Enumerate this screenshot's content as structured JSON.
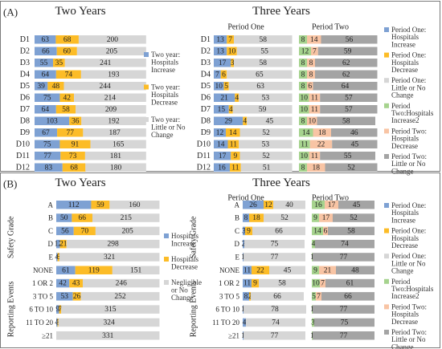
{
  "panelA": {
    "label": "(A)",
    "left": {
      "title": "Two Years",
      "max": 310,
      "rows": [
        "D1",
        "D2",
        "D3",
        "D4",
        "D5",
        "D6",
        "D7",
        "D8",
        "D9",
        "D10",
        "D11",
        "D12"
      ],
      "series": [
        {
          "name": "Two year: Hospitals Increase",
          "color": "#7ea1d3",
          "values": [
            63,
            66,
            55,
            64,
            39,
            75,
            64,
            103,
            67,
            75,
            77,
            83
          ]
        },
        {
          "name": "Two year: Hospitals Decrease",
          "color": "#fcbc27",
          "values": [
            68,
            60,
            35,
            74,
            48,
            42,
            58,
            36,
            77,
            91,
            73,
            68
          ]
        },
        {
          "name": "Two year: Little or No Change",
          "color": "#d6d6d6",
          "values": [
            200,
            205,
            241,
            193,
            244,
            214,
            209,
            192,
            187,
            165,
            181,
            180
          ]
        }
      ],
      "legend": [
        "Two year: Hospitals Increase",
        "Two year: Hospitals Decrease",
        "Two year: Little or No Change"
      ]
    },
    "right": {
      "title": "Three Years",
      "period_one": "Period One",
      "period_two": "Period Two",
      "max": 80,
      "rows": [
        "D1",
        "D2",
        "D3",
        "D4",
        "D5",
        "D6",
        "D7",
        "D8",
        "D9",
        "D10",
        "D11",
        "D12"
      ],
      "p1": [
        {
          "name": "Period One: Hospitals Increase",
          "color": "#7ea1d3",
          "values": [
            13,
            13,
            17,
            7,
            10,
            21,
            15,
            29,
            12,
            14,
            17,
            16
          ]
        },
        {
          "name": "Period One: Hospitals Decrease",
          "color": "#fcbc27",
          "values": [
            7,
            10,
            3,
            6,
            5,
            4,
            4,
            4,
            14,
            11,
            9,
            11
          ]
        },
        {
          "name": "Period One: Little or No Change",
          "color": "#d6d6d6",
          "values": [
            58,
            55,
            58,
            65,
            63,
            53,
            59,
            45,
            52,
            53,
            52,
            51
          ]
        }
      ],
      "p2": [
        {
          "name": "Period Two:Hospitals Increase2",
          "color": "#a6d38e",
          "values": [
            8,
            12,
            8,
            8,
            8,
            10,
            10,
            8,
            14,
            11,
            10,
            8
          ]
        },
        {
          "name": "Period Two: Hospitals Decrease",
          "color": "#f8c4a4",
          "values": [
            14,
            7,
            8,
            8,
            6,
            11,
            11,
            10,
            18,
            22,
            11,
            18
          ]
        },
        {
          "name": "Period Two: Little or No Change",
          "color": "#a4a4a4",
          "values": [
            56,
            59,
            62,
            62,
            64,
            57,
            57,
            58,
            46,
            45,
            55,
            52
          ]
        }
      ],
      "legend": [
        "Period One: Hospitals Increase",
        "Period One: Hospitals Decrease",
        "Period One: Little or No Change",
        "Period Two:Hospitals Increase2",
        "Period Two: Hospitals Decrease",
        "Period Two: Little or No Change"
      ]
    }
  },
  "panelB": {
    "label": "(B)",
    "group1": "Safety Grade",
    "group2": "Reporting Events",
    "left": {
      "title": "Two Years",
      "max": 335,
      "rows": [
        "A",
        "B",
        "C",
        "D",
        "E",
        "NONE",
        "1 OR 2",
        "3 TO 5",
        "6 TO 10",
        "11 TO 20",
        "≥21"
      ],
      "series": [
        {
          "name": "Hospitals Increase",
          "color": "#7ea1d3",
          "values": [
            112,
            50,
            56,
            12,
            4,
            61,
            42,
            53,
            9,
            4,
            0
          ]
        },
        {
          "name": "Hospitals Decrease",
          "color": "#fcbc27",
          "values": [
            59,
            66,
            70,
            21,
            6,
            119,
            43,
            26,
            7,
            3,
            0
          ]
        },
        {
          "name": "Negligible or No Change",
          "color": "#d6d6d6",
          "values": [
            160,
            215,
            205,
            298,
            321,
            151,
            246,
            252,
            315,
            324,
            331
          ]
        }
      ],
      "legend": [
        "Hospitals Increase",
        "Hospitals Decrease",
        "Negligible or No Change"
      ]
    },
    "right": {
      "title": "Three Years",
      "period_one": "Period One",
      "period_two": "Period Two",
      "max": 80,
      "rows": [
        "A",
        "B",
        "C",
        "D",
        "E",
        "NONE",
        "1 OR 2",
        "3 TO 5",
        "6 TO 10",
        "11 TO 20",
        "≥21"
      ],
      "p1": [
        {
          "name": "Period One: Hospitals Increase",
          "color": "#7ea1d3",
          "values": [
            26,
            8,
            3,
            2,
            1,
            11,
            11,
            8,
            1,
            4,
            1
          ]
        },
        {
          "name": "Period One: Hospitals Decrease",
          "color": "#fcbc27",
          "values": [
            12,
            18,
            9,
            0,
            0,
            22,
            9,
            2,
            0,
            0,
            0
          ]
        },
        {
          "name": "Period One: Little or No Change",
          "color": "#d6d6d6",
          "values": [
            40,
            52,
            66,
            75,
            77,
            45,
            58,
            66,
            78,
            74,
            77
          ]
        }
      ],
      "p2": [
        {
          "name": "Period Two:Hospitals Increase2",
          "color": "#a6d38e",
          "values": [
            16,
            9,
            14,
            4,
            1,
            9,
            10,
            5,
            1,
            3,
            1
          ]
        },
        {
          "name": "Period Two: Hospitals Decrease",
          "color": "#f8c4a4",
          "values": [
            17,
            17,
            6,
            0,
            0,
            21,
            7,
            7,
            0,
            0,
            0
          ]
        },
        {
          "name": "Period Two: Little or No Change",
          "color": "#a4a4a4",
          "values": [
            45,
            52,
            58,
            74,
            77,
            48,
            61,
            66,
            77,
            75,
            77
          ]
        }
      ],
      "legend": [
        "Period One: Hospitals Increase",
        "Period One: Hospitals Decrease",
        "Period One: Little or No Change",
        "Period Two:Hospitals Increase2",
        "Period Two: Hospitals Decrease",
        "Period Two: Little or No Change"
      ]
    }
  },
  "chart_data": [
    {
      "type": "bar",
      "title": "Two Years",
      "categories": [
        "D1",
        "D2",
        "D3",
        "D4",
        "D5",
        "D6",
        "D7",
        "D8",
        "D9",
        "D10",
        "D11",
        "D12"
      ],
      "series": [
        {
          "name": "Two year: Hospitals Increase",
          "values": [
            63,
            66,
            55,
            64,
            39,
            75,
            64,
            103,
            67,
            75,
            77,
            83
          ]
        },
        {
          "name": "Two year: Hospitals Decrease",
          "values": [
            68,
            60,
            35,
            74,
            48,
            42,
            58,
            36,
            77,
            91,
            73,
            68
          ]
        },
        {
          "name": "Two year: Little or No Change",
          "values": [
            200,
            205,
            241,
            193,
            244,
            214,
            209,
            192,
            187,
            165,
            181,
            180
          ]
        }
      ]
    },
    {
      "type": "bar",
      "title": "Three Years",
      "categories": [
        "D1",
        "D2",
        "D3",
        "D4",
        "D5",
        "D6",
        "D7",
        "D8",
        "D9",
        "D10",
        "D11",
        "D12"
      ],
      "series": [
        {
          "name": "Period One: Hospitals Increase",
          "values": [
            13,
            13,
            17,
            7,
            10,
            21,
            15,
            29,
            12,
            14,
            17,
            16
          ]
        },
        {
          "name": "Period One: Hospitals Decrease",
          "values": [
            7,
            10,
            3,
            6,
            5,
            4,
            4,
            4,
            14,
            11,
            9,
            11
          ]
        },
        {
          "name": "Period One: Little or No Change",
          "values": [
            58,
            55,
            58,
            65,
            63,
            53,
            59,
            45,
            52,
            53,
            52,
            51
          ]
        },
        {
          "name": "Period Two:Hospitals Increase2",
          "values": [
            8,
            12,
            8,
            8,
            8,
            10,
            10,
            8,
            14,
            11,
            10,
            8
          ]
        },
        {
          "name": "Period Two: Hospitals Decrease",
          "values": [
            14,
            7,
            8,
            8,
            6,
            11,
            11,
            10,
            18,
            22,
            11,
            18
          ]
        },
        {
          "name": "Period Two: Little or No Change",
          "values": [
            56,
            59,
            62,
            62,
            64,
            57,
            57,
            58,
            46,
            45,
            55,
            52
          ]
        }
      ]
    },
    {
      "type": "bar",
      "title": "Two Years",
      "categories": [
        "A",
        "B",
        "C",
        "D",
        "E",
        "NONE",
        "1 OR 2",
        "3 TO 5",
        "6 TO 10",
        "11 TO 20",
        "≥21"
      ],
      "series": [
        {
          "name": "Hospitals Increase",
          "values": [
            112,
            50,
            56,
            12,
            4,
            61,
            42,
            53,
            9,
            4,
            0
          ]
        },
        {
          "name": "Hospitals Decrease",
          "values": [
            59,
            66,
            70,
            21,
            6,
            119,
            43,
            26,
            7,
            3,
            0
          ]
        },
        {
          "name": "Negligible or No Change",
          "values": [
            160,
            215,
            205,
            298,
            321,
            151,
            246,
            252,
            315,
            324,
            331
          ]
        }
      ]
    },
    {
      "type": "bar",
      "title": "Three Years",
      "categories": [
        "A",
        "B",
        "C",
        "D",
        "E",
        "NONE",
        "1 OR 2",
        "3 TO 5",
        "6 TO 10",
        "11 TO 20",
        "≥21"
      ],
      "series": [
        {
          "name": "Period One: Hospitals Increase",
          "values": [
            26,
            8,
            3,
            2,
            1,
            11,
            11,
            8,
            1,
            4,
            1
          ]
        },
        {
          "name": "Period One: Hospitals Decrease",
          "values": [
            12,
            18,
            9,
            0,
            0,
            22,
            9,
            2,
            0,
            0,
            0
          ]
        },
        {
          "name": "Period One: Little or No Change",
          "values": [
            40,
            52,
            66,
            75,
            77,
            45,
            58,
            66,
            78,
            74,
            77
          ]
        },
        {
          "name": "Period Two:Hospitals Increase2",
          "values": [
            16,
            9,
            14,
            4,
            1,
            9,
            10,
            5,
            1,
            3,
            1
          ]
        },
        {
          "name": "Period Two: Hospitals Decrease",
          "values": [
            17,
            17,
            6,
            0,
            0,
            21,
            7,
            7,
            0,
            0,
            0
          ]
        },
        {
          "name": "Period Two: Little or No Change",
          "values": [
            45,
            52,
            58,
            74,
            77,
            48,
            61,
            66,
            77,
            75,
            77
          ]
        }
      ]
    }
  ]
}
